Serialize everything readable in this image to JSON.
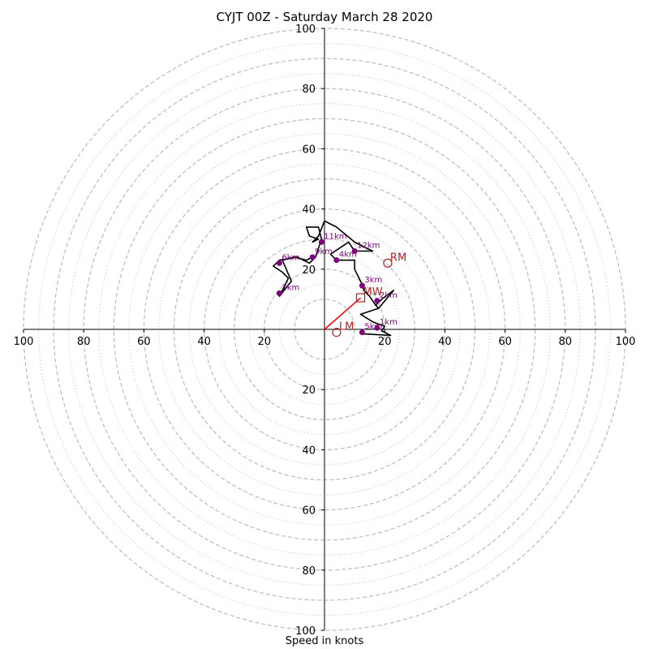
{
  "title": "CYJT 00Z - Saturday March 28 2020",
  "xlabel": "Speed in knots",
  "colors": {
    "hodograph": "#000000",
    "height_markers": "#800080",
    "motion_markers": "#b22222",
    "shear_vector": "#ff0000",
    "rings": "#bbbbbb"
  },
  "chart_data": {
    "type": "hodograph",
    "units": "knots",
    "xlim": [
      -100,
      100
    ],
    "ylim": [
      -100,
      100
    ],
    "major_rings": [
      10,
      20,
      30,
      40,
      50,
      60,
      70,
      80,
      90,
      100
    ],
    "minor_rings": [
      15,
      25,
      35,
      45,
      55,
      65,
      75,
      85,
      95
    ],
    "tick_values": [
      20,
      40,
      60,
      80,
      100
    ],
    "tick_labels": {
      "left": [
        "20",
        "40",
        "60",
        "80",
        "100"
      ],
      "right": [
        "20",
        "40",
        "60",
        "80",
        "100"
      ],
      "top": [
        "20",
        "40",
        "60",
        "80",
        "100"
      ],
      "bottom": [
        "20",
        "40",
        "60",
        "80",
        "100"
      ]
    },
    "hodograph_line": [
      [
        13,
        -1.5
      ],
      [
        22,
        -2
      ],
      [
        19,
        -0.5
      ],
      [
        20,
        1
      ],
      [
        16,
        2.5
      ],
      [
        12,
        5
      ],
      [
        18,
        7
      ],
      [
        17,
        8
      ],
      [
        19,
        10
      ],
      [
        23,
        13
      ],
      [
        18,
        7
      ],
      [
        17,
        8
      ],
      [
        15,
        11
      ],
      [
        13,
        13
      ],
      [
        13,
        14
      ],
      [
        10,
        20
      ],
      [
        10,
        23
      ],
      [
        4,
        23
      ],
      [
        2,
        25
      ],
      [
        8,
        29
      ],
      [
        10,
        26
      ],
      [
        13,
        26
      ],
      [
        16,
        26
      ],
      [
        14,
        27
      ],
      [
        12,
        28
      ],
      [
        10,
        29
      ],
      [
        4,
        34
      ],
      [
        0,
        36
      ],
      [
        -2,
        31
      ],
      [
        -4,
        29
      ],
      [
        -2,
        30
      ],
      [
        -5,
        31
      ],
      [
        -6,
        34
      ],
      [
        -2,
        34
      ],
      [
        -1,
        30
      ],
      [
        -3,
        24
      ],
      [
        -5,
        22
      ],
      [
        -9,
        24
      ],
      [
        -15,
        23
      ],
      [
        -17,
        21
      ],
      [
        -14,
        19
      ],
      [
        -12,
        17
      ],
      [
        -15,
        11
      ],
      [
        -11,
        16
      ],
      [
        -14,
        23
      ],
      [
        -10,
        24
      ],
      [
        -6,
        23
      ],
      [
        -4,
        24
      ]
    ],
    "height_markers": [
      {
        "label": "1km",
        "u": 17.5,
        "v": 0.5
      },
      {
        "label": "2km",
        "u": 17.5,
        "v": 9.5
      },
      {
        "label": "3km",
        "u": 12.5,
        "v": 14.5
      },
      {
        "label": "4km",
        "u": 4,
        "v": 23
      },
      {
        "label": "5km",
        "u": 12.5,
        "v": -1
      },
      {
        "label": "6km",
        "u": -15,
        "v": 22
      },
      {
        "label": "7km",
        "u": -15,
        "v": 12
      },
      {
        "label": "9km",
        "u": -4,
        "v": 24
      },
      {
        "label": "11km",
        "u": -1,
        "v": 29
      },
      {
        "label": "12km",
        "u": 10,
        "v": 26
      }
    ],
    "storm_motions": [
      {
        "label": "RM",
        "u": 21,
        "v": 22,
        "marker": "circle"
      },
      {
        "label": "LM",
        "u": 4,
        "v": -1,
        "marker": "circle"
      },
      {
        "label": "MW",
        "u": 12,
        "v": 10.5,
        "marker": "square"
      }
    ],
    "shear_vector": {
      "from": [
        0,
        0
      ],
      "to": [
        12,
        10.5
      ]
    }
  }
}
